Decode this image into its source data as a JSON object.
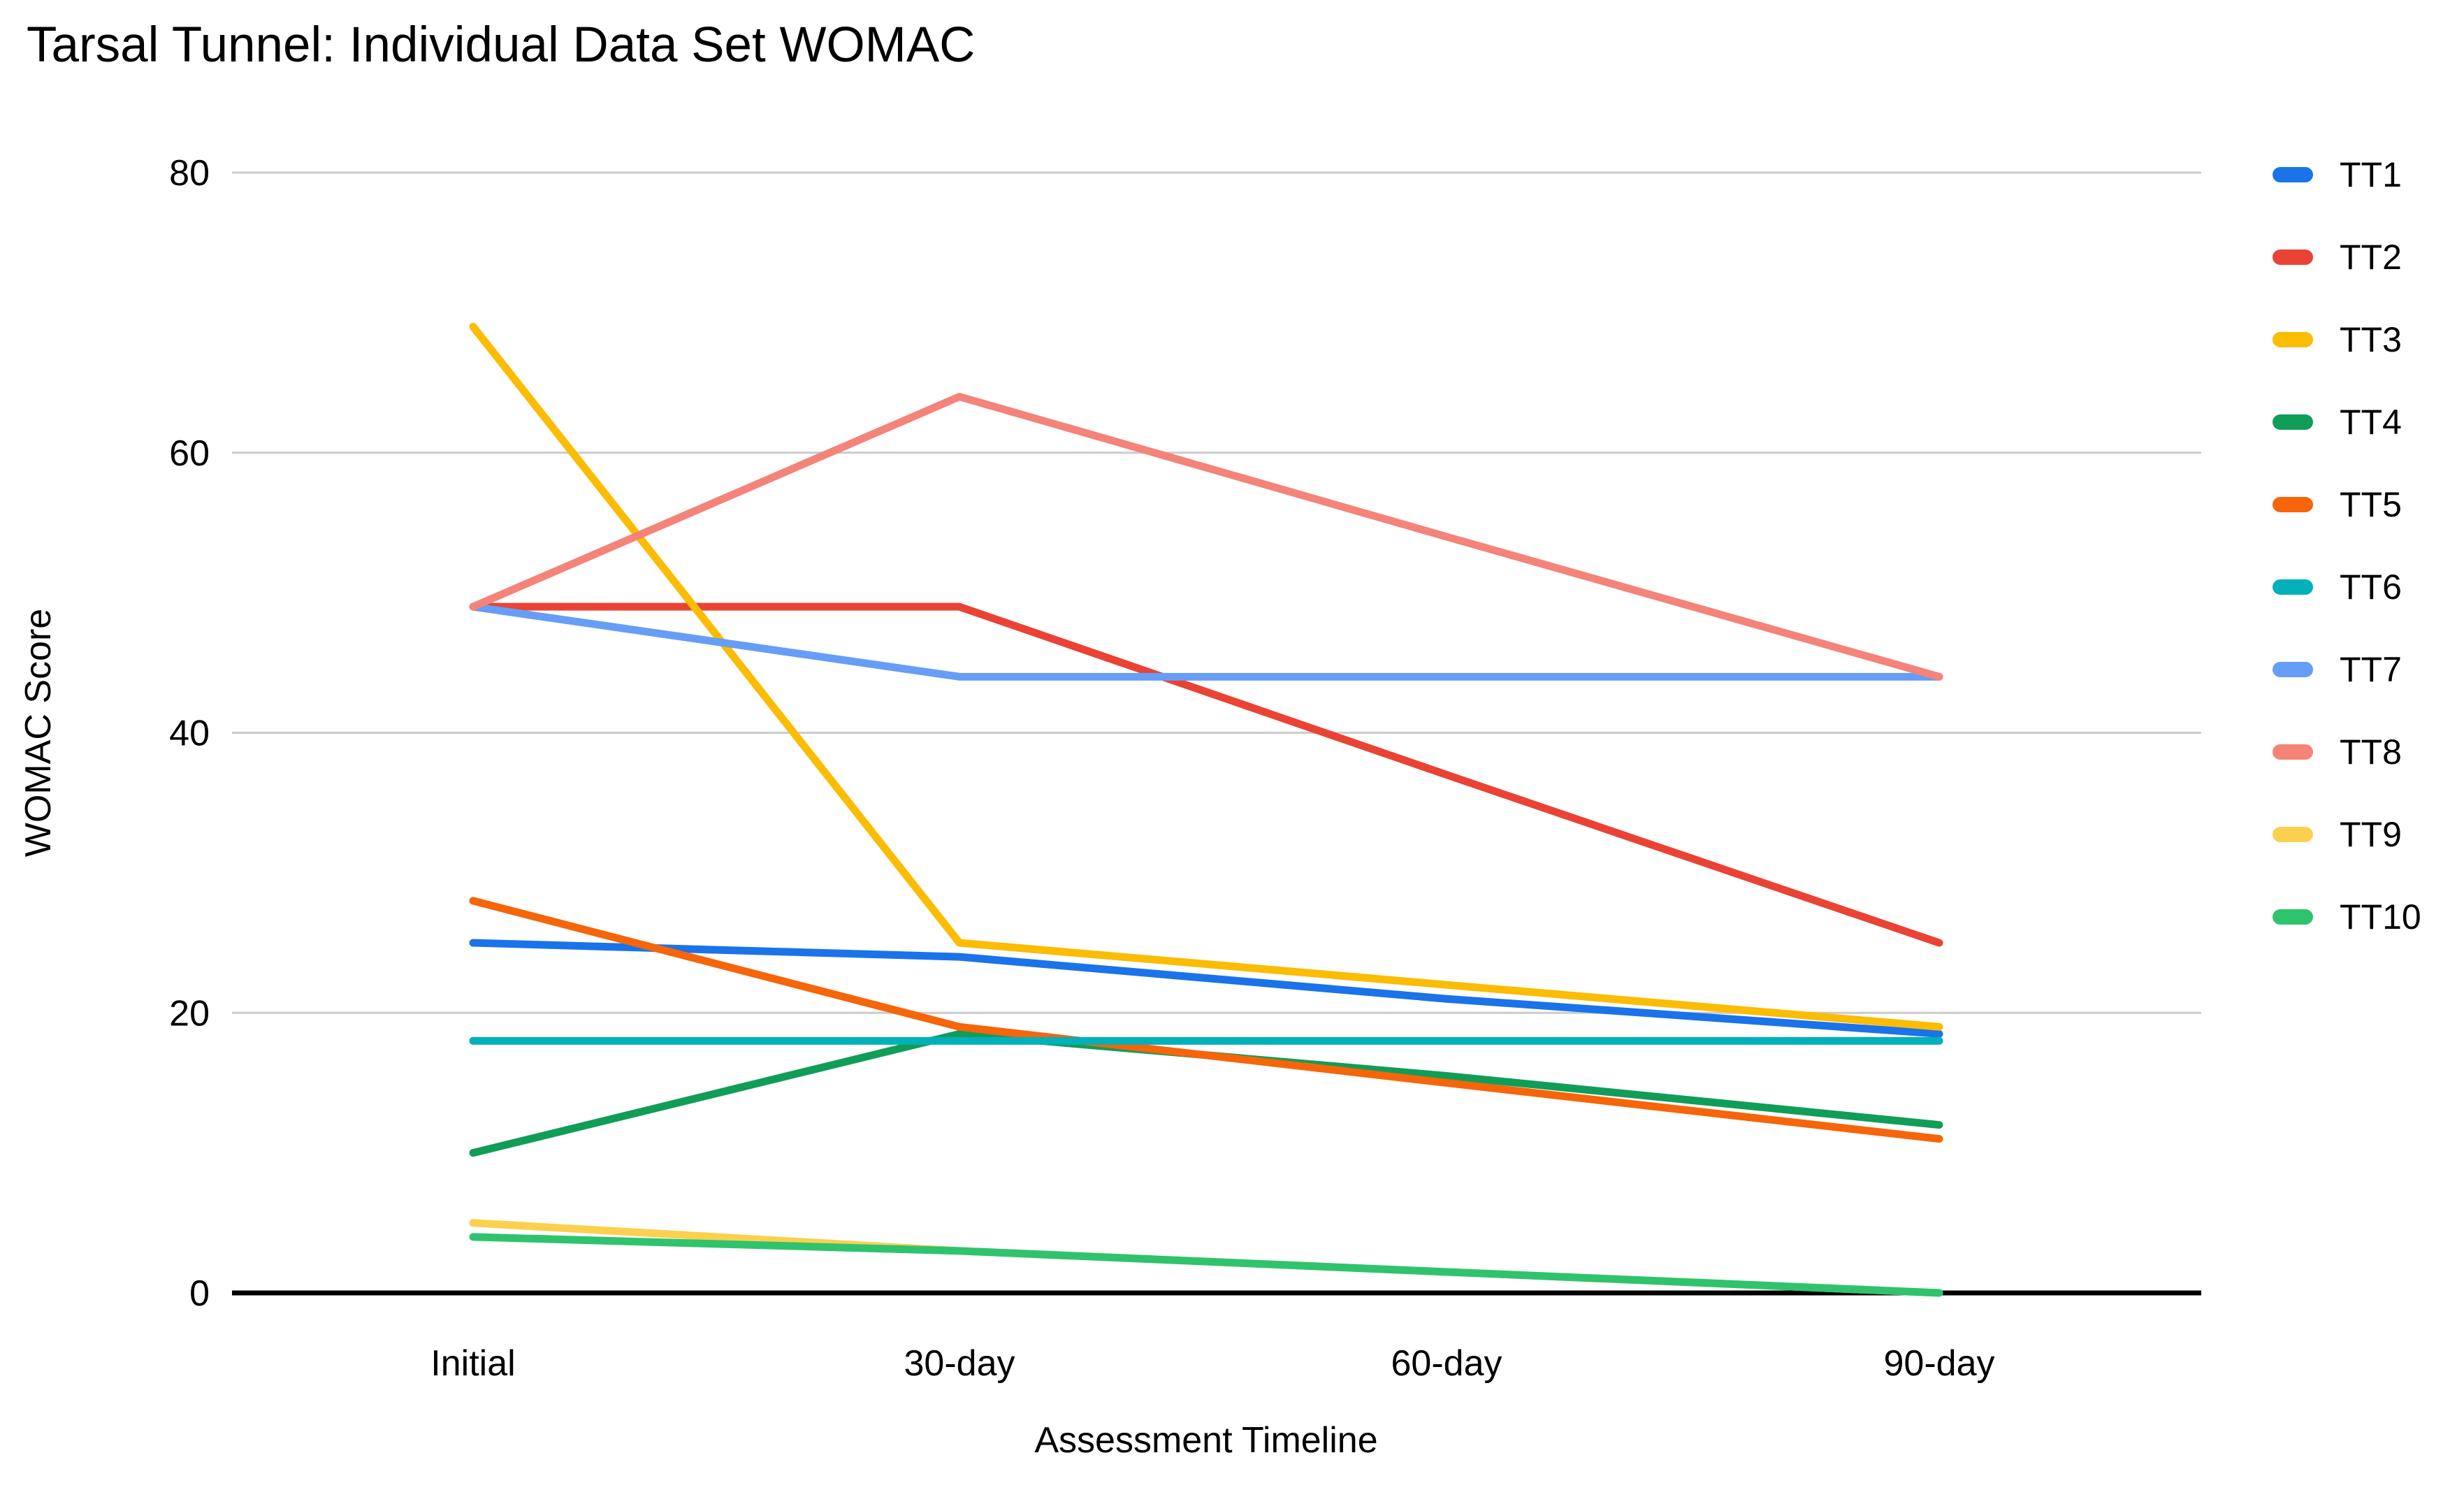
{
  "chart_data": {
    "type": "line",
    "title": "Tarsal Tunnel: Individual Data Set WOMAC",
    "xlabel": "Assessment Timeline",
    "ylabel": "WOMAC Score",
    "categories": [
      "Initial",
      "30-day",
      "60-day",
      "90-day"
    ],
    "series": [
      {
        "name": "TT1",
        "color": "#1a73e8",
        "values": [
          25,
          24,
          21,
          18.5
        ]
      },
      {
        "name": "TT2",
        "color": "#ea4335",
        "values": [
          49,
          49,
          37,
          25
        ]
      },
      {
        "name": "TT3",
        "color": "#fbbc04",
        "values": [
          69,
          25,
          22,
          19
        ]
      },
      {
        "name": "TT4",
        "color": "#109d58",
        "values": [
          10,
          18.5,
          15.5,
          12
        ]
      },
      {
        "name": "TT5",
        "color": "#f6650a",
        "values": [
          28,
          19,
          15,
          11
        ]
      },
      {
        "name": "TT6",
        "color": "#00b1ba",
        "values": [
          18,
          18,
          18,
          18
        ]
      },
      {
        "name": "TT7",
        "color": "#669df6",
        "values": [
          49,
          44,
          44,
          44
        ]
      },
      {
        "name": "TT8",
        "color": "#f4837a",
        "values": [
          49,
          64,
          54,
          44
        ]
      },
      {
        "name": "TT9",
        "color": "#fcd04f",
        "values": [
          5,
          3,
          1.5,
          0
        ]
      },
      {
        "name": "TT10",
        "color": "#2fc36e",
        "values": [
          4,
          3,
          1.5,
          0
        ]
      }
    ],
    "ylim": [
      0,
      80
    ],
    "yticks": [
      0,
      20,
      40,
      60,
      80
    ],
    "grid": true,
    "legend_position": "right"
  },
  "colors": {
    "gridline": "#cccccc",
    "axis_line": "#000000",
    "text": "#000000",
    "background": "#ffffff"
  }
}
